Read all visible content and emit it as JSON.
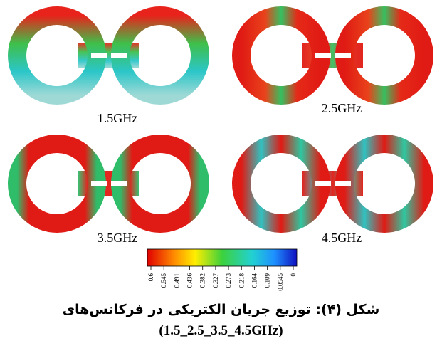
{
  "figure": {
    "panels": [
      {
        "label": "1.5GHz"
      },
      {
        "label": "2.5GHz"
      },
      {
        "label": "3.5GHz"
      },
      {
        "label": "4.5GHz"
      }
    ],
    "colorbar": {
      "ticks": [
        "0.6",
        "0.545",
        "0.491",
        "0.436",
        "0.382",
        "0.327",
        "0.273",
        "0.218",
        "0.164",
        "0.109",
        "0.0545",
        "0"
      ]
    },
    "caption": {
      "line1": "شکل (۴): توزیع جریان الکتریکی در فرکانس‌های",
      "line2": "(1.5_2.5_3.5_4.5GHz)"
    }
  }
}
